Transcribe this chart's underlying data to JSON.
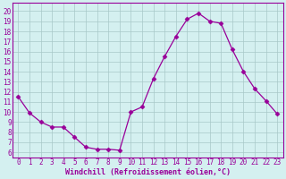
{
  "x": [
    0,
    1,
    2,
    3,
    4,
    5,
    6,
    7,
    8,
    9,
    10,
    11,
    12,
    13,
    14,
    15,
    16,
    17,
    18,
    19,
    20,
    21,
    22,
    23
  ],
  "y": [
    11.5,
    9.9,
    9.0,
    8.5,
    8.5,
    7.5,
    6.5,
    6.3,
    6.3,
    6.2,
    10.0,
    10.5,
    13.3,
    15.5,
    17.5,
    19.2,
    19.8,
    19.0,
    18.8,
    16.2,
    14.0,
    12.3,
    11.1,
    9.8
  ],
  "line_color": "#990099",
  "marker": "D",
  "marker_size": 2.5,
  "bg_color": "#d4f0f0",
  "grid_color": "#a8c8c8",
  "xlabel": "Windchill (Refroidissement éolien,°C)",
  "ylabel_ticks": [
    6,
    7,
    8,
    9,
    10,
    11,
    12,
    13,
    14,
    15,
    16,
    17,
    18,
    19,
    20
  ],
  "xlim": [
    -0.5,
    23.5
  ],
  "ylim": [
    5.5,
    20.8
  ],
  "tick_fontsize": 5.5,
  "xlabel_fontsize": 6.0
}
